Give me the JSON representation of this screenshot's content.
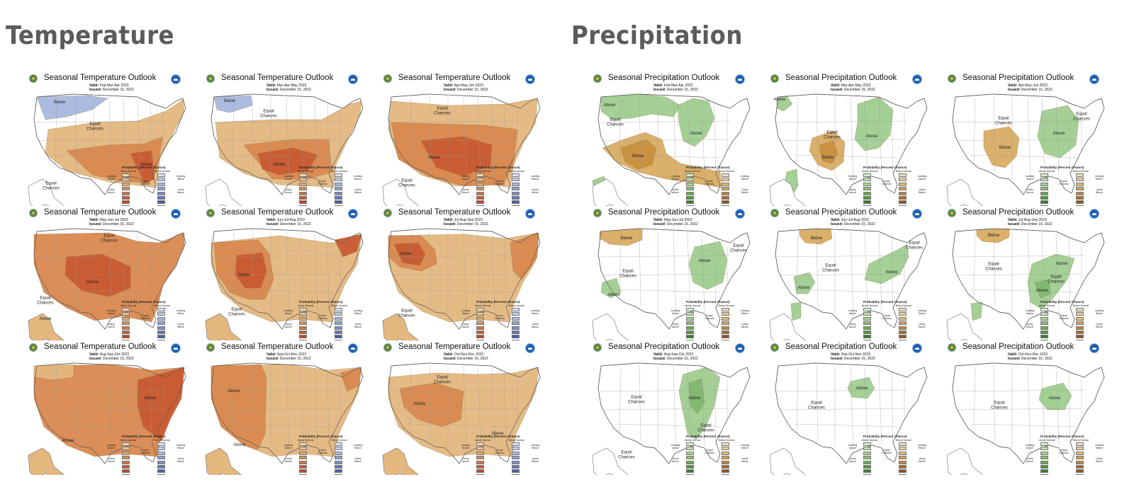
{
  "headings": {
    "temperature": "Temperature",
    "precipitation": "Precipitation"
  },
  "colors": {
    "background": "#ffffff",
    "heading": "#5b5b5b",
    "temp_above_light": "#e4b77e",
    "temp_above_mid": "#d9884e",
    "temp_above_dark": "#c95a33",
    "temp_below_light": "#a8b8de",
    "precip_above": "#9fcd90",
    "precip_above_dark": "#7fb86e",
    "precip_below": "#d9ac62",
    "precip_below_dark": "#c98f3f"
  },
  "legend": {
    "title": "Probability (Percent Chance)",
    "above_normal": "Above Normal",
    "below_normal": "Below Normal",
    "leaning_above": "Leaning Above",
    "likely_above": "Likely Above",
    "equal_chances": "Equal Chances",
    "leaning_below": "Leaning Below",
    "likely_below": "Likely Below"
  },
  "temperature_maps": [
    {
      "title": "Seasonal Temperature Outlook",
      "valid": "Feb-Mar-Apr 2023",
      "issued": "December 15, 2022",
      "regions": [
        {
          "text": "Below",
          "category": "below",
          "level": 1
        },
        {
          "text": "Equal Chances",
          "category": "equal"
        },
        {
          "text": "Above",
          "category": "above",
          "level": 3
        },
        {
          "text": "Equal Chances",
          "category": "equal"
        }
      ]
    },
    {
      "title": "Seasonal Temperature Outlook",
      "valid": "Mar-Apr-May 2023",
      "issued": "December 15, 2022",
      "regions": [
        {
          "text": "Below",
          "category": "below",
          "level": 1
        },
        {
          "text": "Equal Chances",
          "category": "equal"
        },
        {
          "text": "Above",
          "category": "above",
          "level": 3
        }
      ]
    },
    {
      "title": "Seasonal Temperature Outlook",
      "valid": "Apr-May-Jun 2023",
      "issued": "December 15, 2022",
      "regions": [
        {
          "text": "Equal Chances",
          "category": "equal"
        },
        {
          "text": "Above",
          "category": "above",
          "level": 3
        },
        {
          "text": "Equal Chances",
          "category": "equal"
        }
      ]
    },
    {
      "title": "Seasonal Temperature Outlook",
      "valid": "May-Jun-Jul 2023",
      "issued": "December 15, 2022",
      "regions": [
        {
          "text": "Equal Chances",
          "category": "equal"
        },
        {
          "text": "Above",
          "category": "above",
          "level": 3
        },
        {
          "text": "Equal Chances",
          "category": "equal"
        },
        {
          "text": "Above",
          "category": "above",
          "level": 1
        }
      ]
    },
    {
      "title": "Seasonal Temperature Outlook",
      "valid": "Jun-Jul-Aug 2023",
      "issued": "December 15, 2022",
      "regions": [
        {
          "text": "Above",
          "category": "above",
          "level": 3
        },
        {
          "text": "Equal Chances",
          "category": "equal"
        }
      ]
    },
    {
      "title": "Seasonal Temperature Outlook",
      "valid": "Jul-Aug-Sep 2023",
      "issued": "December 15, 2022",
      "regions": [
        {
          "text": "Above",
          "category": "above",
          "level": 3
        },
        {
          "text": "Equal Chances",
          "category": "equal"
        }
      ]
    },
    {
      "title": "Seasonal Temperature Outlook",
      "valid": "Aug-Sep-Oct 2023",
      "issued": "December 15, 2022",
      "regions": [
        {
          "text": "Above",
          "category": "above",
          "level": 3
        },
        {
          "text": "Above",
          "category": "above",
          "level": 1
        }
      ]
    },
    {
      "title": "Seasonal Temperature Outlook",
      "valid": "Sep-Oct-Nov 2023",
      "issued": "December 15, 2022",
      "regions": [
        {
          "text": "Above",
          "category": "above",
          "level": 2
        },
        {
          "text": "Above",
          "category": "above",
          "level": 1
        }
      ]
    },
    {
      "title": "Seasonal Temperature Outlook",
      "valid": "Oct-Nov-Dec 2023",
      "issued": "December 15, 2022",
      "regions": [
        {
          "text": "Above",
          "category": "above",
          "level": 2
        },
        {
          "text": "Equal Chances",
          "category": "equal"
        },
        {
          "text": "Above",
          "category": "above",
          "level": 1
        }
      ]
    }
  ],
  "precipitation_maps": [
    {
      "title": "Seasonal Precipitation Outlook",
      "valid": "Feb-Mar-Apr 2023",
      "issued": "December 15, 2022",
      "regions": [
        {
          "text": "Above",
          "category": "above",
          "level": 1
        },
        {
          "text": "Equal Chances",
          "category": "equal"
        },
        {
          "text": "Below",
          "category": "below",
          "level": 2
        },
        {
          "text": "Above",
          "category": "above",
          "level": 1
        }
      ]
    },
    {
      "title": "Seasonal Precipitation Outlook",
      "valid": "Mar-Apr-May 2023",
      "issued": "December 15, 2022",
      "regions": [
        {
          "text": "Above",
          "category": "above",
          "level": 1
        },
        {
          "text": "Equal Chances",
          "category": "equal"
        },
        {
          "text": "Below",
          "category": "below",
          "level": 2
        },
        {
          "text": "Above",
          "category": "above",
          "level": 1
        }
      ]
    },
    {
      "title": "Seasonal Precipitation Outlook",
      "valid": "Apr-May-Jun 2023",
      "issued": "December 15, 2022",
      "regions": [
        {
          "text": "Equal Chances",
          "category": "equal"
        },
        {
          "text": "Below",
          "category": "below",
          "level": 1
        },
        {
          "text": "Equal Chances",
          "category": "equal"
        },
        {
          "text": "Above",
          "category": "above",
          "level": 1
        }
      ]
    },
    {
      "title": "Seasonal Precipitation Outlook",
      "valid": "May-Jun-Jul 2023",
      "issued": "December 15, 2022",
      "regions": [
        {
          "text": "Below",
          "category": "below",
          "level": 1
        },
        {
          "text": "Equal Chances",
          "category": "equal"
        },
        {
          "text": "Above",
          "category": "above",
          "level": 1
        },
        {
          "text": "Equal Chances",
          "category": "equal"
        },
        {
          "text": "Above",
          "category": "above",
          "level": 1
        }
      ]
    },
    {
      "title": "Seasonal Precipitation Outlook",
      "valid": "Jun-Jul-Aug 2023",
      "issued": "December 15, 2022",
      "regions": [
        {
          "text": "Below",
          "category": "below",
          "level": 1
        },
        {
          "text": "Equal Chances",
          "category": "equal"
        },
        {
          "text": "Above",
          "category": "above",
          "level": 1
        },
        {
          "text": "Equal Chances",
          "category": "equal"
        },
        {
          "text": "Above",
          "category": "above",
          "level": 1
        }
      ]
    },
    {
      "title": "Seasonal Precipitation Outlook",
      "valid": "Jul-Aug-Sep 2023",
      "issued": "December 15, 2022",
      "regions": [
        {
          "text": "Below",
          "category": "below",
          "level": 1
        },
        {
          "text": "Equal Chances",
          "category": "equal"
        },
        {
          "text": "Above",
          "category": "above",
          "level": 1
        },
        {
          "text": "Above",
          "category": "above",
          "level": 2
        },
        {
          "text": "Equal Chances",
          "category": "equal"
        }
      ]
    },
    {
      "title": "Seasonal Precipitation Outlook",
      "valid": "Aug-Sep-Oct 2023",
      "issued": "December 15, 2022",
      "regions": [
        {
          "text": "Equal Chances",
          "category": "equal"
        },
        {
          "text": "Above",
          "category": "above",
          "level": 2
        },
        {
          "text": "Equal Chances",
          "category": "equal"
        },
        {
          "text": "Equal Chances",
          "category": "equal"
        }
      ]
    },
    {
      "title": "Seasonal Precipitation Outlook",
      "valid": "Sep-Oct-Nov 2023",
      "issued": "December 15, 2022",
      "regions": [
        {
          "text": "Equal Chances",
          "category": "equal"
        },
        {
          "text": "Above",
          "category": "above",
          "level": 1
        }
      ]
    },
    {
      "title": "Seasonal Precipitation Outlook",
      "valid": "Oct-Nov-Dec 2023",
      "issued": "December 15, 2022",
      "regions": [
        {
          "text": "Equal Chances",
          "category": "equal"
        },
        {
          "text": "Above",
          "category": "above",
          "level": 1
        }
      ]
    }
  ]
}
